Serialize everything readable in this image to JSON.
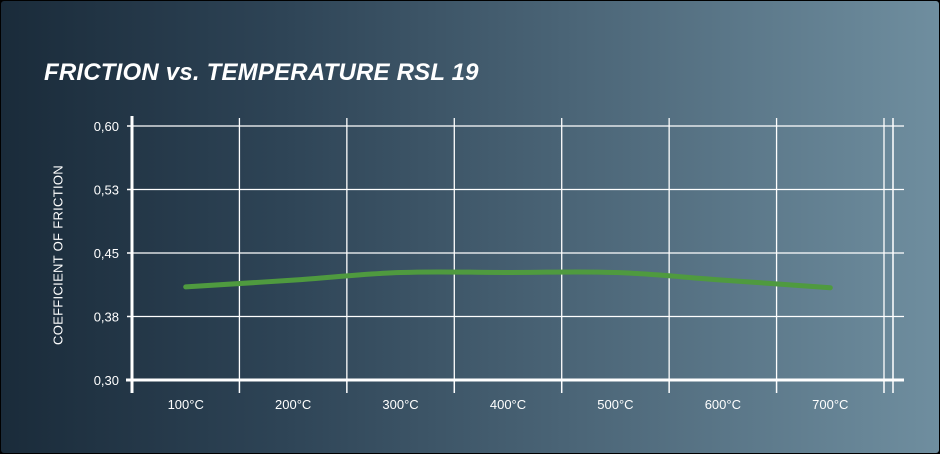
{
  "chart_data": {
    "type": "line",
    "title": "FRICTION vs. TEMPERATURE RSL 19",
    "xlabel": "",
    "ylabel": "COEFFICIENT OF FRICTION",
    "categories": [
      "100°C",
      "200°C",
      "300°C",
      "400°C",
      "500°C",
      "600°C",
      "700°C"
    ],
    "y_tick_labels": [
      "0,60",
      "0,53",
      "0,45",
      "0,38",
      "0,30"
    ],
    "ylim": [
      0.3,
      0.6
    ],
    "grid": true,
    "series": [
      {
        "values": [
          0.41,
          0.418,
          0.427,
          0.427,
          0.427,
          0.418,
          0.409
        ],
        "color": "#4f9a3f"
      }
    ],
    "colors": {
      "grid": "#ffffff",
      "axis": "#ffffff",
      "text": "#ffffff"
    }
  }
}
